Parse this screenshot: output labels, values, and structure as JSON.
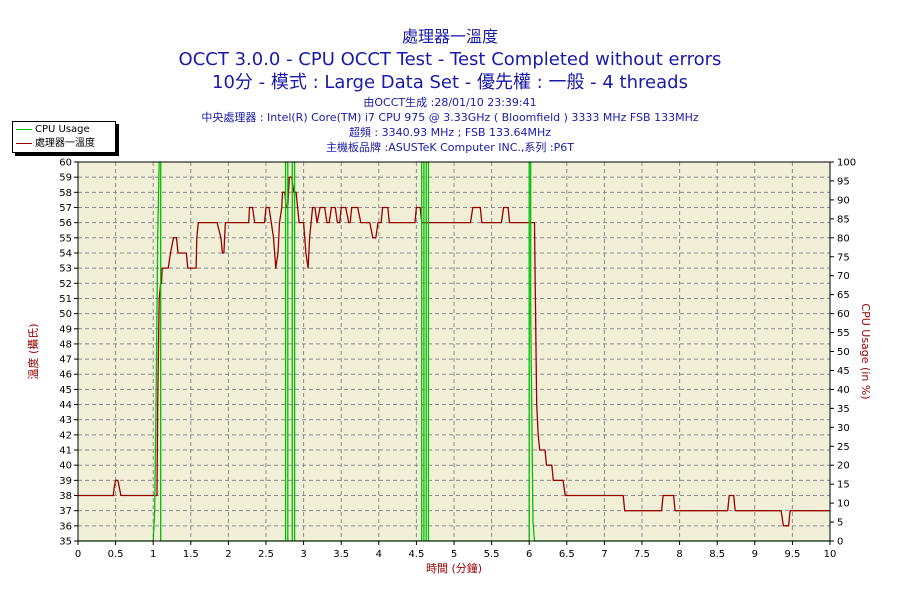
{
  "header": {
    "title_main": "處理器一溫度",
    "title_sub": "OCCT 3.0.0 - CPU OCCT Test - Test Completed without errors",
    "title_mode": "10分 - 模式 : Large Data Set - 優先權 : 一般 - 4 threads",
    "info_generated": "由OCCT生成 :28/01/10 23:39:41",
    "info_cpu": "中央處理器 : Intel(R) Core(TM) i7 CPU 975 @ 3.33GHz ( Bloomfield ) 3333 MHz FSB 133MHz",
    "info_freq": "超頻 : 3340.93 MHz ; FSB 133.64MHz",
    "info_board": "主機板品牌 :ASUSTeK Computer INC.,系列 :P6T"
  },
  "legend": {
    "cpu_usage_label": "CPU Usage",
    "temperature_label": "處理器一溫度"
  },
  "colors": {
    "cpu_usage": "#00c000",
    "temperature": "#990000",
    "plot_bg": "#f2efd9",
    "grid": "#8c8c8c",
    "title": "#1a1aa8"
  },
  "chart_data": {
    "type": "line",
    "xlabel": "時間 (分鐘)",
    "ylabel_left": "溫度 (攝氏)",
    "ylabel_right": "CPU Usage (in %)",
    "xlim": [
      0,
      10
    ],
    "ylim_left": [
      35,
      60
    ],
    "ylim_right": [
      0,
      100
    ],
    "x_ticks": [
      "0",
      "0.5",
      "1",
      "1.5",
      "2",
      "2.5",
      "3",
      "3.5",
      "4",
      "4.5",
      "5",
      "5.5",
      "6",
      "6.5",
      "7",
      "7.5",
      "8",
      "8.5",
      "9",
      "9.5",
      "10"
    ],
    "y_left_ticks": [
      "35",
      "36",
      "37",
      "38",
      "39",
      "40",
      "41",
      "42",
      "43",
      "44",
      "45",
      "46",
      "47",
      "48",
      "49",
      "50",
      "51",
      "52",
      "53",
      "54",
      "55",
      "56",
      "57",
      "58",
      "59",
      "60"
    ],
    "y_right_ticks": [
      "0",
      "5",
      "10",
      "15",
      "20",
      "25",
      "30",
      "35",
      "40",
      "45",
      "50",
      "55",
      "60",
      "65",
      "70",
      "75",
      "80",
      "85",
      "90",
      "95",
      "100"
    ],
    "grid": true,
    "legend_position": "top-left",
    "series": [
      {
        "name": "處理器一溫度",
        "axis": "left",
        "points": [
          [
            0,
            38
          ],
          [
            0.47,
            38
          ],
          [
            0.48,
            38.5
          ],
          [
            0.5,
            39
          ],
          [
            0.53,
            39
          ],
          [
            0.55,
            38.5
          ],
          [
            0.57,
            38
          ],
          [
            1.05,
            38
          ],
          [
            1.06,
            44
          ],
          [
            1.08,
            51
          ],
          [
            1.1,
            52
          ],
          [
            1.11,
            52
          ],
          [
            1.12,
            53
          ],
          [
            1.2,
            53
          ],
          [
            1.23,
            54
          ],
          [
            1.27,
            55
          ],
          [
            1.31,
            55
          ],
          [
            1.33,
            54
          ],
          [
            1.44,
            54
          ],
          [
            1.46,
            53
          ],
          [
            1.57,
            53
          ],
          [
            1.58,
            55
          ],
          [
            1.6,
            56
          ],
          [
            1.85,
            56
          ],
          [
            1.9,
            55
          ],
          [
            1.92,
            54
          ],
          [
            1.94,
            54
          ],
          [
            1.95,
            55
          ],
          [
            1.96,
            56
          ],
          [
            2.27,
            56
          ],
          [
            2.28,
            57
          ],
          [
            2.32,
            57
          ],
          [
            2.35,
            56
          ],
          [
            2.48,
            56
          ],
          [
            2.5,
            57
          ],
          [
            2.54,
            57
          ],
          [
            2.57,
            56
          ],
          [
            2.6,
            55
          ],
          [
            2.63,
            53
          ],
          [
            2.66,
            54
          ],
          [
            2.68,
            56
          ],
          [
            2.71,
            57
          ],
          [
            2.72,
            58
          ],
          [
            2.75,
            58
          ],
          [
            2.77,
            57
          ],
          [
            2.79,
            57
          ],
          [
            2.81,
            59
          ],
          [
            2.84,
            59
          ],
          [
            2.87,
            58
          ],
          [
            2.9,
            58
          ],
          [
            2.94,
            56
          ],
          [
            3.0,
            56
          ],
          [
            3.03,
            54
          ],
          [
            3.06,
            53
          ],
          [
            3.08,
            55
          ],
          [
            3.1,
            56
          ],
          [
            3.12,
            57
          ],
          [
            3.15,
            57
          ],
          [
            3.18,
            56
          ],
          [
            3.22,
            57
          ],
          [
            3.28,
            57
          ],
          [
            3.31,
            56
          ],
          [
            3.34,
            56
          ],
          [
            3.37,
            57
          ],
          [
            3.42,
            57
          ],
          [
            3.45,
            56
          ],
          [
            3.48,
            56
          ],
          [
            3.5,
            57
          ],
          [
            3.56,
            57
          ],
          [
            3.6,
            56
          ],
          [
            3.62,
            56
          ],
          [
            3.64,
            57
          ],
          [
            3.72,
            57
          ],
          [
            3.76,
            56
          ],
          [
            3.88,
            56
          ],
          [
            3.92,
            55
          ],
          [
            3.96,
            55
          ],
          [
            3.99,
            56
          ],
          [
            4.03,
            56
          ],
          [
            4.05,
            57
          ],
          [
            4.12,
            57
          ],
          [
            4.14,
            56
          ],
          [
            4.48,
            56
          ],
          [
            4.5,
            57
          ],
          [
            4.55,
            57
          ],
          [
            4.57,
            56
          ],
          [
            5.22,
            56
          ],
          [
            5.25,
            57
          ],
          [
            5.35,
            57
          ],
          [
            5.37,
            56
          ],
          [
            5.63,
            56
          ],
          [
            5.66,
            57
          ],
          [
            5.72,
            57
          ],
          [
            5.74,
            56
          ],
          [
            6.07,
            56
          ],
          [
            6.08,
            52
          ],
          [
            6.1,
            44
          ],
          [
            6.12,
            42
          ],
          [
            6.14,
            41
          ],
          [
            6.21,
            41
          ],
          [
            6.23,
            40
          ],
          [
            6.3,
            40
          ],
          [
            6.32,
            39
          ],
          [
            6.45,
            39
          ],
          [
            6.48,
            38
          ],
          [
            6.52,
            38
          ],
          [
            6.54,
            38
          ],
          [
            7.25,
            38
          ],
          [
            7.27,
            37
          ],
          [
            7.76,
            37
          ],
          [
            7.78,
            38
          ],
          [
            7.92,
            38
          ],
          [
            7.94,
            37
          ],
          [
            8.64,
            37
          ],
          [
            8.66,
            38
          ],
          [
            8.72,
            38
          ],
          [
            8.74,
            37
          ],
          [
            9.35,
            37
          ],
          [
            9.38,
            36
          ],
          [
            9.45,
            36
          ],
          [
            9.47,
            37
          ],
          [
            10,
            37
          ]
        ]
      },
      {
        "name": "CPU Usage",
        "axis": "right",
        "points": [
          [
            0,
            0
          ],
          [
            1.0,
            0
          ],
          [
            1.02,
            8
          ],
          [
            1.04,
            40
          ],
          [
            1.06,
            80
          ],
          [
            1.08,
            100
          ],
          [
            1.1,
            100
          ],
          [
            1.1,
            0
          ],
          [
            2.76,
            0
          ],
          [
            2.76,
            100
          ],
          [
            2.79,
            100
          ],
          [
            2.79,
            0
          ],
          [
            2.85,
            0
          ],
          [
            2.85,
            100
          ],
          [
            2.88,
            100
          ],
          [
            2.88,
            0
          ],
          [
            4.57,
            0
          ],
          [
            4.57,
            100
          ],
          [
            4.6,
            100
          ],
          [
            4.6,
            0
          ],
          [
            4.63,
            0
          ],
          [
            4.63,
            100
          ],
          [
            4.66,
            100
          ],
          [
            4.66,
            0
          ],
          [
            6.0,
            0
          ],
          [
            6.0,
            100
          ],
          [
            6.02,
            100
          ],
          [
            6.02,
            60
          ],
          [
            6.05,
            5
          ],
          [
            6.07,
            0
          ],
          [
            10,
            0
          ]
        ]
      }
    ]
  }
}
